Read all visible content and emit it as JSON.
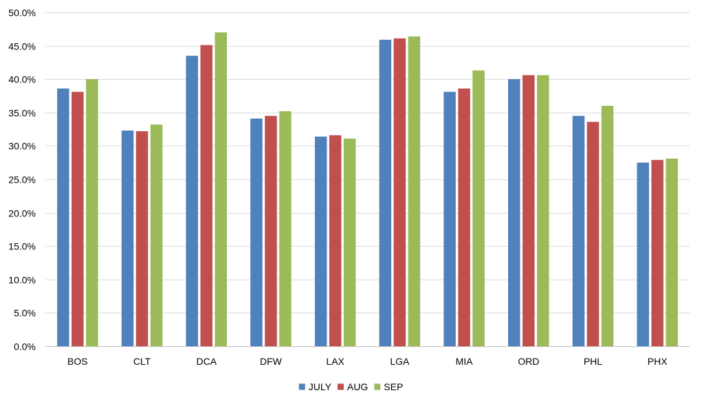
{
  "chart_data": {
    "type": "bar",
    "title": "",
    "xlabel": "",
    "ylabel": "",
    "categories": [
      "BOS",
      "CLT",
      "DCA",
      "DFW",
      "LAX",
      "LGA",
      "MIA",
      "ORD",
      "PHL",
      "PHX"
    ],
    "series": [
      {
        "name": "JULY",
        "color": "#4f81bd",
        "values": [
          38.6,
          32.3,
          43.5,
          34.1,
          31.4,
          45.9,
          38.1,
          40.0,
          34.5,
          27.5
        ]
      },
      {
        "name": "AUG",
        "color": "#c0504d",
        "values": [
          38.1,
          32.2,
          45.1,
          34.5,
          31.6,
          46.1,
          38.6,
          40.6,
          33.6,
          27.9
        ]
      },
      {
        "name": "SEP",
        "color": "#9bbb59",
        "values": [
          40.0,
          33.2,
          47.0,
          35.2,
          31.1,
          46.4,
          41.3,
          40.6,
          36.0,
          28.1
        ]
      }
    ],
    "ylim": [
      0,
      50
    ],
    "ytick_step": 5,
    "ytick_format": "percent_1dp",
    "grid": true,
    "legend_position": "bottom",
    "gridline_color": "#d9d9d9",
    "axis_color": "#bfbfbf"
  }
}
